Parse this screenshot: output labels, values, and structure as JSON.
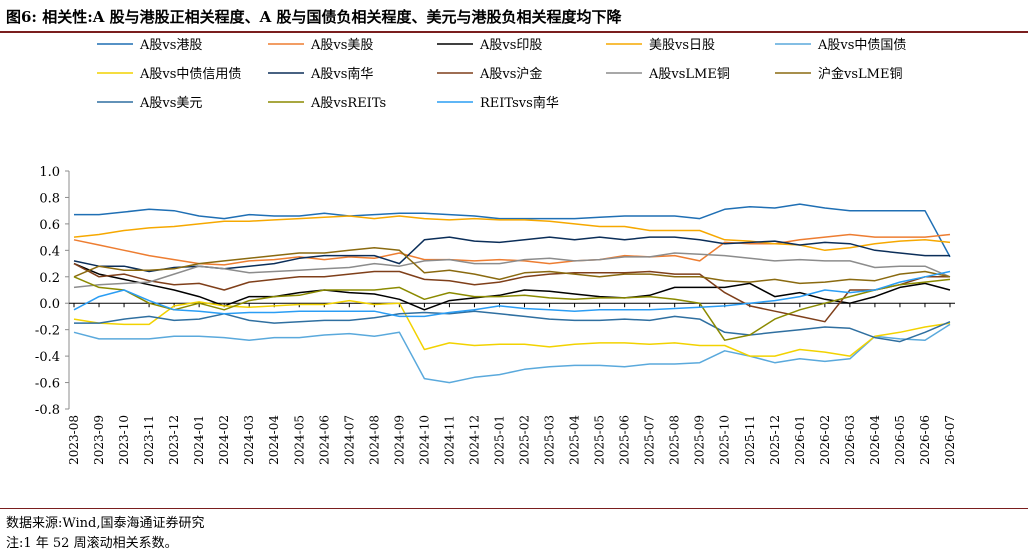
{
  "figure": {
    "title": "图6:  相关性:A 股与港股正相关程度、A 股与国债负相关程度、美元与港股负相关程度均下降",
    "source": "数据来源:Wind,国泰海通证券研究",
    "note": "注:1 年 52 周滚动相关系数。"
  },
  "chart_data": {
    "type": "line",
    "title": "",
    "xlabel": "",
    "ylabel": "",
    "ylim": [
      -0.8,
      1.0
    ],
    "yticks": [
      "1.0",
      "0.8",
      "0.6",
      "0.4",
      "0.2",
      "0.0",
      "-0.2",
      "-0.4",
      "-0.6",
      "-0.8"
    ],
    "xticks": [
      "2023-08",
      "2023-09",
      "2023-10",
      "2023-11",
      "2023-12",
      "2024-01",
      "2024-02",
      "2024-03",
      "2024-04",
      "2024-05",
      "2024-06",
      "2024-07",
      "2024-08",
      "2024-09",
      "2024-10",
      "2024-11",
      "2024-12",
      "2025-01",
      "2025-02",
      "2025-03",
      "2025-04",
      "2025-05",
      "2025-06",
      "2025-07",
      "2025-08",
      "2025-09",
      "2025-10",
      "2025-11",
      "2025-12",
      "2026-01",
      "2026-02",
      "2026-03",
      "2026-04",
      "2026-05",
      "2026-06",
      "2026-07"
    ],
    "grid": false,
    "legend_position": "top",
    "x": [
      "2023-08",
      "2023-09",
      "2023-10",
      "2023-11",
      "2023-12",
      "2024-01",
      "2024-02",
      "2024-03",
      "2024-04",
      "2024-05",
      "2024-06",
      "2024-07",
      "2024-08",
      "2024-09",
      "2024-10",
      "2024-11",
      "2024-12",
      "2025-01",
      "2025-02",
      "2025-03",
      "2025-04",
      "2025-05",
      "2025-06",
      "2025-07",
      "2025-08",
      "2025-09",
      "2025-10",
      "2025-11",
      "2025-12",
      "2026-01",
      "2026-02",
      "2026-03",
      "2026-04",
      "2026-05",
      "2026-06",
      "2026-07"
    ],
    "series": [
      {
        "name": "A股vs港股",
        "color": "#1f6fb4",
        "values": [
          0.67,
          0.67,
          0.69,
          0.71,
          0.7,
          0.66,
          0.64,
          0.67,
          0.66,
          0.66,
          0.68,
          0.66,
          0.67,
          0.68,
          0.68,
          0.67,
          0.66,
          0.64,
          0.64,
          0.64,
          0.64,
          0.65,
          0.66,
          0.66,
          0.66,
          0.64,
          0.71,
          0.73,
          0.72,
          0.75,
          0.72,
          0.7,
          0.7,
          0.7,
          0.7,
          0.35
        ]
      },
      {
        "name": "A股vs美股",
        "color": "#ed7d31",
        "values": [
          0.48,
          0.44,
          0.4,
          0.36,
          0.33,
          0.3,
          0.29,
          0.32,
          0.33,
          0.35,
          0.33,
          0.35,
          0.34,
          0.38,
          0.33,
          0.33,
          0.32,
          0.33,
          0.32,
          0.3,
          0.32,
          0.33,
          0.36,
          0.35,
          0.36,
          0.32,
          0.46,
          0.45,
          0.45,
          0.48,
          0.5,
          0.52,
          0.5,
          0.5,
          0.5,
          0.52
        ]
      },
      {
        "name": "A股vs印股",
        "color": "#000000",
        "values": [
          0.3,
          0.22,
          0.18,
          0.14,
          0.1,
          0.05,
          -0.02,
          0.05,
          0.05,
          0.08,
          0.1,
          0.08,
          0.07,
          0.03,
          -0.05,
          0.02,
          0.04,
          0.06,
          0.1,
          0.09,
          0.07,
          0.05,
          0.04,
          0.06,
          0.12,
          0.12,
          0.12,
          0.15,
          0.05,
          0.08,
          0.03,
          0.0,
          0.05,
          0.12,
          0.15,
          0.1
        ]
      },
      {
        "name": "美股vs日股",
        "color": "#f6a800",
        "values": [
          0.5,
          0.52,
          0.55,
          0.57,
          0.58,
          0.6,
          0.62,
          0.62,
          0.63,
          0.64,
          0.65,
          0.66,
          0.64,
          0.66,
          0.64,
          0.63,
          0.64,
          0.63,
          0.63,
          0.62,
          0.6,
          0.58,
          0.58,
          0.55,
          0.55,
          0.55,
          0.48,
          0.47,
          0.45,
          0.44,
          0.4,
          0.42,
          0.45,
          0.47,
          0.48,
          0.46
        ]
      },
      {
        "name": "A股vs中债国债",
        "color": "#5aa9dc",
        "values": [
          -0.22,
          -0.27,
          -0.27,
          -0.27,
          -0.25,
          -0.25,
          -0.26,
          -0.28,
          -0.26,
          -0.26,
          -0.24,
          -0.23,
          -0.25,
          -0.22,
          -0.57,
          -0.6,
          -0.56,
          -0.54,
          -0.5,
          -0.48,
          -0.47,
          -0.47,
          -0.48,
          -0.46,
          -0.46,
          -0.45,
          -0.36,
          -0.4,
          -0.45,
          -0.42,
          -0.44,
          -0.42,
          -0.25,
          -0.27,
          -0.28,
          -0.16
        ]
      },
      {
        "name": "A股vs中债信用债",
        "color": "#f2d200",
        "values": [
          -0.12,
          -0.15,
          -0.16,
          -0.16,
          -0.02,
          0.01,
          -0.02,
          -0.03,
          -0.02,
          -0.01,
          -0.01,
          0.02,
          -0.01,
          0.0,
          -0.35,
          -0.3,
          -0.32,
          -0.31,
          -0.31,
          -0.33,
          -0.31,
          -0.3,
          -0.3,
          -0.31,
          -0.3,
          -0.32,
          -0.32,
          -0.4,
          -0.4,
          -0.35,
          -0.37,
          -0.4,
          -0.25,
          -0.22,
          -0.18,
          -0.15
        ]
      },
      {
        "name": "A股vs南华",
        "color": "#0b2e59",
        "values": [
          0.32,
          0.28,
          0.28,
          0.24,
          0.27,
          0.28,
          0.26,
          0.28,
          0.3,
          0.34,
          0.36,
          0.36,
          0.36,
          0.3,
          0.48,
          0.5,
          0.47,
          0.46,
          0.48,
          0.5,
          0.48,
          0.5,
          0.48,
          0.5,
          0.5,
          0.48,
          0.45,
          0.46,
          0.47,
          0.44,
          0.46,
          0.45,
          0.4,
          0.38,
          0.36,
          0.36
        ]
      },
      {
        "name": "A股vs沪金",
        "color": "#7f3f1a",
        "values": [
          0.3,
          0.2,
          0.22,
          0.17,
          0.14,
          0.15,
          0.1,
          0.16,
          0.18,
          0.2,
          0.2,
          0.22,
          0.24,
          0.24,
          0.18,
          0.17,
          0.14,
          0.16,
          0.2,
          0.22,
          0.23,
          0.23,
          0.23,
          0.24,
          0.22,
          0.22,
          0.08,
          -0.02,
          -0.06,
          -0.1,
          -0.14,
          0.1,
          0.1,
          0.14,
          0.2,
          0.2
        ]
      },
      {
        "name": "A股vsLME铜",
        "color": "#8c8c8c",
        "values": [
          0.12,
          0.14,
          0.15,
          0.16,
          0.22,
          0.28,
          0.26,
          0.23,
          0.24,
          0.25,
          0.26,
          0.27,
          0.3,
          0.28,
          0.32,
          0.33,
          0.3,
          0.3,
          0.33,
          0.34,
          0.32,
          0.33,
          0.35,
          0.35,
          0.38,
          0.37,
          0.36,
          0.34,
          0.32,
          0.33,
          0.32,
          0.32,
          0.27,
          0.28,
          0.28,
          0.2
        ]
      },
      {
        "name": "沪金vsLME铜",
        "color": "#8a6a10",
        "values": [
          0.2,
          0.28,
          0.25,
          0.25,
          0.26,
          0.3,
          0.32,
          0.34,
          0.36,
          0.38,
          0.38,
          0.4,
          0.42,
          0.4,
          0.23,
          0.25,
          0.22,
          0.18,
          0.23,
          0.24,
          0.22,
          0.2,
          0.22,
          0.22,
          0.2,
          0.2,
          0.17,
          0.16,
          0.18,
          0.15,
          0.16,
          0.18,
          0.17,
          0.22,
          0.24,
          0.2
        ]
      },
      {
        "name": "A股vs美元",
        "color": "#2f6fa0",
        "values": [
          -0.15,
          -0.15,
          -0.12,
          -0.1,
          -0.13,
          -0.12,
          -0.08,
          -0.13,
          -0.15,
          -0.14,
          -0.13,
          -0.13,
          -0.11,
          -0.08,
          -0.07,
          -0.08,
          -0.06,
          -0.08,
          -0.1,
          -0.12,
          -0.13,
          -0.13,
          -0.12,
          -0.13,
          -0.1,
          -0.12,
          -0.22,
          -0.24,
          -0.22,
          -0.2,
          -0.18,
          -0.19,
          -0.26,
          -0.29,
          -0.22,
          -0.14
        ]
      },
      {
        "name": "A股vsREITs",
        "color": "#8b8a00",
        "values": [
          0.2,
          0.12,
          0.1,
          0.0,
          -0.05,
          0.0,
          -0.05,
          0.02,
          0.05,
          0.06,
          0.1,
          0.1,
          0.1,
          0.12,
          0.03,
          0.08,
          0.05,
          0.05,
          0.06,
          0.04,
          0.03,
          0.04,
          0.04,
          0.05,
          0.03,
          0.0,
          -0.28,
          -0.24,
          -0.12,
          -0.05,
          0.0,
          0.05,
          0.1,
          0.14,
          0.16,
          0.18
        ]
      },
      {
        "name": "REITsvs南华",
        "color": "#2a9df4",
        "values": [
          -0.05,
          0.05,
          0.1,
          0.02,
          -0.05,
          -0.06,
          -0.08,
          -0.07,
          -0.07,
          -0.06,
          -0.06,
          -0.06,
          -0.06,
          -0.1,
          -0.1,
          -0.07,
          -0.05,
          -0.02,
          -0.04,
          -0.05,
          -0.06,
          -0.05,
          -0.05,
          -0.05,
          -0.04,
          -0.03,
          -0.02,
          0.0,
          0.02,
          0.05,
          0.1,
          0.08,
          0.1,
          0.16,
          0.2,
          0.24
        ]
      }
    ]
  }
}
